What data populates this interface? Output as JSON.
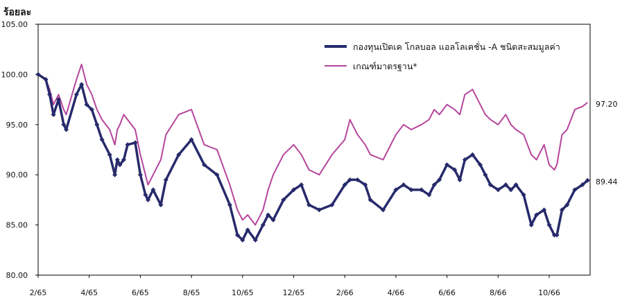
{
  "chart_data": {
    "type": "line",
    "ylabel": "ร้อยละ",
    "ylim": [
      80,
      105
    ],
    "yticks": [
      "80.00",
      "85.00",
      "90.00",
      "95.00",
      "100.00",
      "105.00"
    ],
    "yticks_values": [
      80,
      85,
      90,
      95,
      100,
      105
    ],
    "xticks": [
      "2/65",
      "4/65",
      "6/65",
      "8/65",
      "10/65",
      "12/65",
      "2/66",
      "4/66",
      "6/66",
      "8/66",
      "10/66"
    ],
    "xlim_months": [
      0,
      21.6
    ],
    "legend_position": "top-right",
    "grid": false,
    "series": [
      {
        "name": "กองทุนเปิดเค โกลบอล แอลโลเคชั่น -A ชนิดสะสมมูลค่า",
        "color": "#272a6b",
        "markers": true,
        "end_label": "89.44",
        "x": [
          0.0,
          0.3,
          0.45,
          0.6,
          0.8,
          1.0,
          1.1,
          1.5,
          1.7,
          1.9,
          2.1,
          2.3,
          2.5,
          2.8,
          3.0,
          3.1,
          3.2,
          3.35,
          3.5,
          3.8,
          4.0,
          4.2,
          4.3,
          4.5,
          4.8,
          5.0,
          5.5,
          6.0,
          6.5,
          7.0,
          7.5,
          7.8,
          8.0,
          8.2,
          8.5,
          8.8,
          9.0,
          9.2,
          9.6,
          10.0,
          10.3,
          10.6,
          11.0,
          11.5,
          12.0,
          12.2,
          12.5,
          12.8,
          13.0,
          13.5,
          14.0,
          14.3,
          14.6,
          15.0,
          15.3,
          15.5,
          15.7,
          16.0,
          16.3,
          16.5,
          16.7,
          17.0,
          17.3,
          17.5,
          17.7,
          18.0,
          18.3,
          18.5,
          18.7,
          19.0,
          19.3,
          19.5,
          19.8,
          20.0,
          20.2,
          20.3,
          20.5,
          20.7,
          21.0,
          21.3,
          21.5
        ],
        "y": [
          100.0,
          99.5,
          98.0,
          96.0,
          97.5,
          95.0,
          94.5,
          98.0,
          99.0,
          97.0,
          96.5,
          95.0,
          93.5,
          92.0,
          90.0,
          91.5,
          91.0,
          91.5,
          93.0,
          93.2,
          90.0,
          88.0,
          87.5,
          88.5,
          87.0,
          89.5,
          92.0,
          93.5,
          91.0,
          90.0,
          87.0,
          84.0,
          83.5,
          84.5,
          83.5,
          85.0,
          86.0,
          85.5,
          87.5,
          88.5,
          89.0,
          87.0,
          86.5,
          87.0,
          89.0,
          89.5,
          89.5,
          89.0,
          87.5,
          86.5,
          88.5,
          89.0,
          88.5,
          88.5,
          88.0,
          89.0,
          89.5,
          91.0,
          90.5,
          89.5,
          91.5,
          92.0,
          91.0,
          90.0,
          89.0,
          88.5,
          89.0,
          88.5,
          89.0,
          88.0,
          85.0,
          86.0,
          86.5,
          85.0,
          84.0,
          84.0,
          86.5,
          87.0,
          88.5,
          89.0,
          89.44
        ]
      },
      {
        "name": "เกณฑ์มาตรฐาน*",
        "color": "#b5459c",
        "markers": false,
        "end_label": "97.20",
        "x": [
          0.0,
          0.3,
          0.45,
          0.6,
          0.8,
          1.0,
          1.1,
          1.5,
          1.7,
          1.9,
          2.1,
          2.3,
          2.5,
          2.8,
          3.0,
          3.1,
          3.2,
          3.35,
          3.5,
          3.8,
          4.0,
          4.2,
          4.3,
          4.5,
          4.8,
          5.0,
          5.5,
          6.0,
          6.5,
          7.0,
          7.5,
          7.8,
          8.0,
          8.2,
          8.5,
          8.8,
          9.0,
          9.2,
          9.6,
          10.0,
          10.3,
          10.6,
          11.0,
          11.5,
          12.0,
          12.2,
          12.5,
          12.8,
          13.0,
          13.5,
          14.0,
          14.3,
          14.6,
          15.0,
          15.3,
          15.5,
          15.7,
          16.0,
          16.3,
          16.5,
          16.7,
          17.0,
          17.3,
          17.5,
          17.7,
          18.0,
          18.3,
          18.5,
          18.7,
          19.0,
          19.3,
          19.5,
          19.8,
          20.0,
          20.2,
          20.3,
          20.5,
          20.7,
          21.0,
          21.3,
          21.5
        ],
        "y": [
          100.0,
          99.5,
          98.5,
          97.0,
          98.0,
          96.5,
          96.0,
          99.5,
          101.0,
          99.0,
          98.0,
          96.5,
          95.5,
          94.5,
          93.0,
          94.5,
          95.0,
          96.0,
          95.5,
          94.5,
          92.0,
          90.0,
          89.0,
          90.0,
          91.5,
          94.0,
          96.0,
          96.5,
          93.0,
          92.5,
          89.0,
          86.5,
          85.5,
          86.0,
          85.0,
          86.5,
          88.5,
          90.0,
          92.0,
          93.0,
          92.0,
          90.5,
          90.0,
          92.0,
          93.5,
          95.5,
          94.0,
          93.0,
          92.0,
          91.5,
          94.0,
          95.0,
          94.5,
          95.0,
          95.5,
          96.5,
          96.0,
          97.0,
          96.5,
          96.0,
          98.0,
          98.5,
          97.0,
          96.0,
          95.5,
          95.0,
          96.0,
          95.0,
          94.5,
          94.0,
          92.0,
          91.5,
          93.0,
          91.0,
          90.5,
          91.0,
          94.0,
          94.5,
          96.5,
          96.8,
          97.2
        ]
      }
    ]
  }
}
